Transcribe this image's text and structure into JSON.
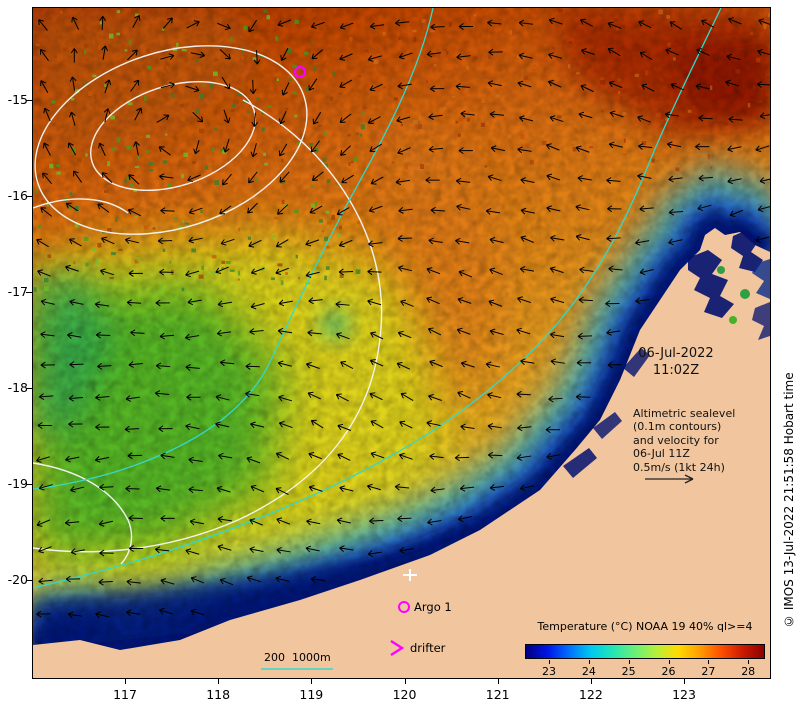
{
  "figure": {
    "background": "#ffffff",
    "land_color": "#f1c69e"
  },
  "colors": {
    "marker_magenta": "#ff00ff",
    "isobath_cyan": "#35d8c8",
    "contour_white": "#f8f8f8",
    "vector_black": "#000000"
  },
  "info": {
    "date": "06-Jul-2022",
    "time": "11:02Z",
    "annotation_lines": [
      "Altimetric sealevel",
      "(0.1m contours)",
      "and velocity for",
      "06-Jul 11Z",
      "0.5m/s (1kt 24h)"
    ]
  },
  "legend": {
    "argo_label": "Argo 1",
    "drifter_label": "drifter",
    "isobath_label": "200  1000m"
  },
  "colorbar": {
    "title": "Temperature (°C) NOAA 19 40% ql>=4",
    "tick_labels": [
      "23",
      "24",
      "25",
      "26",
      "27",
      "28"
    ],
    "tick_pos_pct": [
      10,
      26.6,
      43.2,
      59.8,
      76.4,
      93
    ],
    "gradient_stops": [
      "#000080",
      "#0014e6",
      "#0070ff",
      "#00c8f0",
      "#22e6b4",
      "#66f07a",
      "#b4f03c",
      "#ffdc00",
      "#ffa000",
      "#ff5000",
      "#cc1a00",
      "#8c0000"
    ]
  },
  "axes": {
    "x_tick_labels": [
      "117",
      "118",
      "119",
      "120",
      "121",
      "122",
      "123"
    ],
    "y_tick_labels": [
      "-15",
      "-16",
      "-17",
      "-18",
      "-19",
      "-20"
    ]
  },
  "credit": "© IMOS 13-Jul-2022 21:51:58 Hobart time",
  "markers": {
    "argo_float": {
      "x": 267,
      "y": 64
    }
  },
  "chart_data": {
    "type": "heatmap",
    "title": "Temperature (°C) NOAA 19 40% ql>=4",
    "timestamp": "06-Jul-2022 11:02Z",
    "x_ticks": [
      117,
      118,
      119,
      120,
      121,
      122,
      123
    ],
    "y_ticks": [
      -15,
      -16,
      -17,
      -18,
      -19,
      -20
    ],
    "colorbar_ticks_c": [
      23,
      24,
      25,
      26,
      27,
      28
    ],
    "overlays": [
      "altimetric sealevel contours (0.1m)",
      "velocity vectors 0.5m/s (1kt 24h)",
      "200m and 1000m isobaths",
      "Argo 1 float position",
      "drifter"
    ]
  }
}
